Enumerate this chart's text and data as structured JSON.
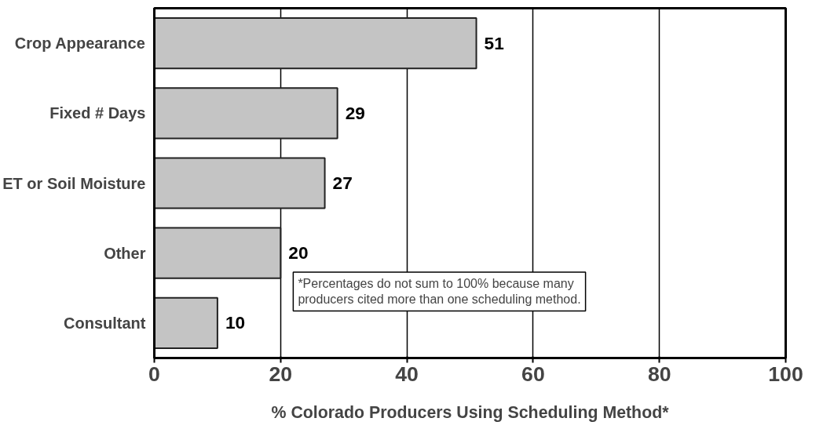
{
  "chart_data": {
    "type": "bar",
    "orientation": "horizontal",
    "categories": [
      "Crop Appearance",
      "Fixed # Days",
      "ET or Soil Moisture",
      "Other",
      "Consultant"
    ],
    "values": [
      51,
      29,
      27,
      20,
      10
    ],
    "color": "#c4c4c4",
    "data_labels": true,
    "xlim": [
      0,
      100
    ],
    "xticks": [
      0,
      20,
      40,
      60,
      80,
      100
    ],
    "grid": "x",
    "xlabel": "% Colorado Producers Using Scheduling Method*",
    "annotations": [
      "*Percentages do not sum to 100% because many producers cited more than one scheduling method."
    ]
  }
}
